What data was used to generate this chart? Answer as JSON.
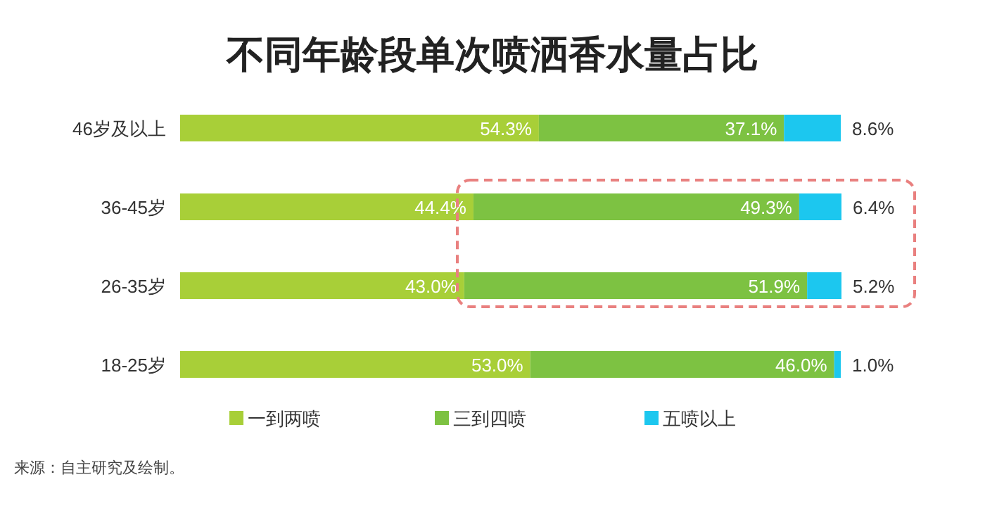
{
  "chart_data": {
    "type": "bar",
    "orientation": "horizontal",
    "stacked": true,
    "title": "不同年龄段单次喷洒香水量占比",
    "categories": [
      "46岁及以上",
      "36-45岁",
      "26-35岁",
      "18-25岁"
    ],
    "series": [
      {
        "name": "一到两喷",
        "color": "#a8cf38",
        "values": [
          54.3,
          44.4,
          43.0,
          53.0
        ],
        "value_labels": [
          "54.3%",
          "44.4%",
          "43.0%",
          "53.0%"
        ]
      },
      {
        "name": "三到四喷",
        "color": "#7dc242",
        "values": [
          37.1,
          49.3,
          51.9,
          46.0
        ],
        "value_labels": [
          "37.1%",
          "49.3%",
          "51.9%",
          "46.0%"
        ]
      },
      {
        "name": "五喷以上",
        "color": "#1cc7ef",
        "values": [
          8.6,
          6.4,
          5.2,
          1.0
        ],
        "value_labels": [
          "8.6%",
          "6.4%",
          "5.2%",
          "1.0%"
        ]
      }
    ],
    "legend": "bottom",
    "annotations": [
      "来源：自主研究及绘制。"
    ]
  }
}
